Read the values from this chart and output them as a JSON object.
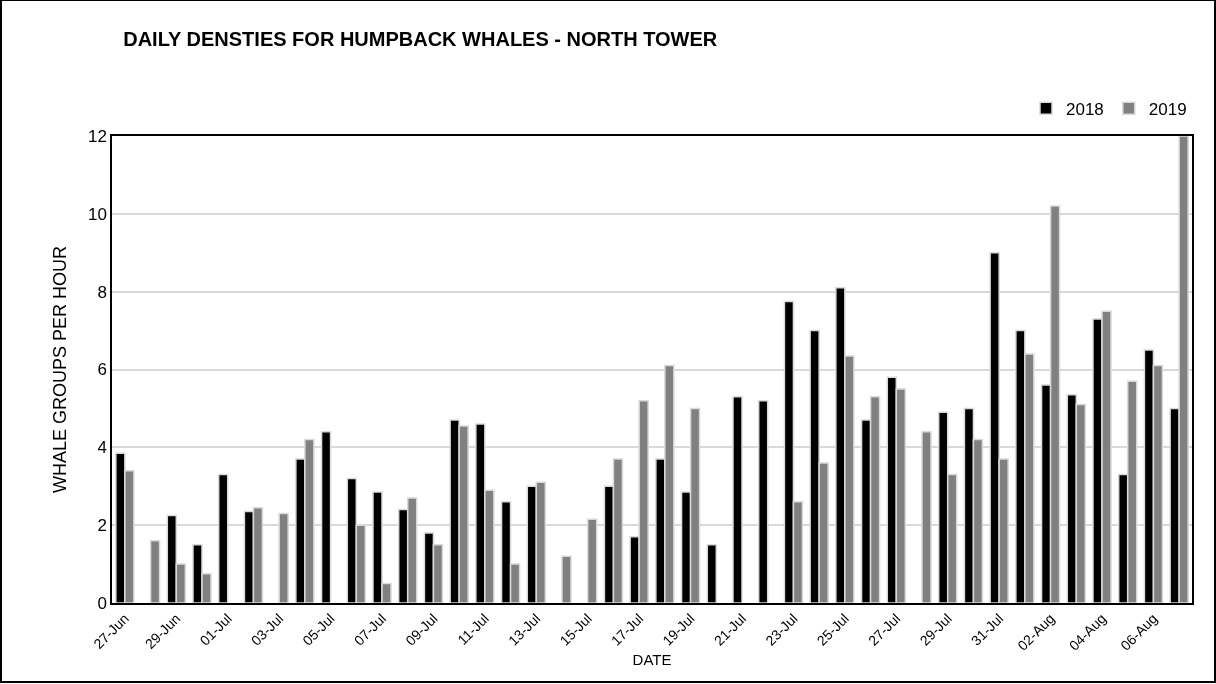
{
  "chart_data": {
    "type": "bar",
    "title": "DAILY DENSTIES FOR HUMPBACK WHALES - NORTH TOWER",
    "xlabel": "DATE",
    "ylabel": "WHALE GROUPS PER HOUR",
    "categories": [
      "27-Jun",
      null,
      "29-Jun",
      null,
      "01-Jul",
      null,
      "03-Jul",
      null,
      "05-Jul",
      null,
      "07-Jul",
      null,
      "09-Jul",
      null,
      "11-Jul",
      null,
      "13-Jul",
      null,
      "15-Jul",
      null,
      "17-Jul",
      null,
      "19-Jul",
      null,
      "21-Jul",
      null,
      "23-Jul",
      null,
      "25-Jul",
      null,
      "27-Jul",
      null,
      "29-Jul",
      null,
      "31-Jul",
      null,
      "02-Aug",
      null,
      "04-Aug",
      null,
      "06-Aug",
      null
    ],
    "series": [
      {
        "name": "2018",
        "color": "#000000",
        "values": [
          3.85,
          null,
          2.25,
          1.5,
          3.3,
          2.35,
          null,
          3.7,
          4.4,
          3.2,
          2.85,
          2.4,
          1.8,
          4.7,
          4.6,
          2.6,
          3.0,
          null,
          null,
          3.0,
          1.7,
          3.7,
          2.85,
          1.5,
          5.3,
          5.2,
          7.75,
          7.0,
          8.1,
          4.7,
          5.8,
          null,
          4.9,
          5.0,
          9.0,
          7.0,
          5.6,
          5.35,
          7.3,
          3.3,
          6.5,
          5.0
        ]
      },
      {
        "name": "2019",
        "color": "#808080",
        "values": [
          3.4,
          1.6,
          1.0,
          0.75,
          null,
          2.45,
          2.3,
          4.2,
          null,
          2.0,
          0.5,
          2.7,
          1.5,
          4.55,
          2.9,
          1.0,
          3.1,
          1.2,
          2.15,
          3.7,
          5.2,
          6.1,
          5.0,
          null,
          null,
          null,
          2.6,
          3.6,
          6.35,
          5.3,
          5.5,
          4.4,
          3.3,
          4.2,
          3.7,
          6.4,
          10.2,
          5.1,
          7.5,
          5.7,
          6.1,
          12.0
        ]
      }
    ],
    "ylim": [
      0,
      12
    ],
    "yticks": [
      0,
      2,
      4,
      6,
      8,
      10,
      12
    ],
    "grid": "y",
    "legend": "top right"
  }
}
